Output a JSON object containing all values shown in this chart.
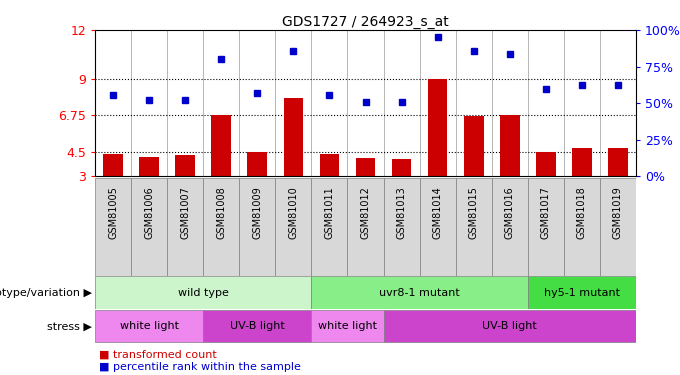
{
  "title": "GDS1727 / 264923_s_at",
  "samples": [
    "GSM81005",
    "GSM81006",
    "GSM81007",
    "GSM81008",
    "GSM81009",
    "GSM81010",
    "GSM81011",
    "GSM81012",
    "GSM81013",
    "GSM81014",
    "GSM81015",
    "GSM81016",
    "GSM81017",
    "GSM81018",
    "GSM81019"
  ],
  "bar_values": [
    4.35,
    4.2,
    4.3,
    6.75,
    4.5,
    7.8,
    4.4,
    4.1,
    4.05,
    9.0,
    6.7,
    6.8,
    4.5,
    4.75,
    4.75
  ],
  "dot_values": [
    8.0,
    7.7,
    7.7,
    10.2,
    8.1,
    10.7,
    8.0,
    7.6,
    7.55,
    11.6,
    10.7,
    10.5,
    8.4,
    8.6,
    8.6
  ],
  "ylim_left": [
    3,
    12
  ],
  "ylim_right": [
    0,
    100
  ],
  "yticks_left": [
    3,
    4.5,
    6.75,
    9,
    12
  ],
  "ytick_labels_left": [
    "3",
    "4.5",
    "6.75",
    "9",
    "12"
  ],
  "yticks_right": [
    0,
    25,
    50,
    75,
    100
  ],
  "ytick_labels_right": [
    "0%",
    "25%",
    "50%",
    "75%",
    "100%"
  ],
  "hlines": [
    4.5,
    6.75,
    9
  ],
  "bar_color": "#cc0000",
  "dot_color": "#0000cc",
  "bar_bottom": 3,
  "genotype_groups": [
    {
      "label": "wild type",
      "start": 0,
      "end": 5,
      "color": "#ccf5cc"
    },
    {
      "label": "uvr8-1 mutant",
      "start": 6,
      "end": 11,
      "color": "#88ee88"
    },
    {
      "label": "hy5-1 mutant",
      "start": 12,
      "end": 14,
      "color": "#44dd44"
    }
  ],
  "stress_groups": [
    {
      "label": "white light",
      "start": 0,
      "end": 2,
      "color": "#ee88ee"
    },
    {
      "label": "UV-B light",
      "start": 3,
      "end": 5,
      "color": "#cc44cc"
    },
    {
      "label": "white light",
      "start": 6,
      "end": 7,
      "color": "#ee88ee"
    },
    {
      "label": "UV-B light",
      "start": 8,
      "end": 14,
      "color": "#cc44cc"
    }
  ],
  "legend_bar_label": "transformed count",
  "legend_dot_label": "percentile rank within the sample",
  "genotype_label": "genotype/variation",
  "stress_label": "stress",
  "bg_color": "#ffffff",
  "plot_bg_color": "#ffffff",
  "xtick_bg_color": "#d8d8d8"
}
